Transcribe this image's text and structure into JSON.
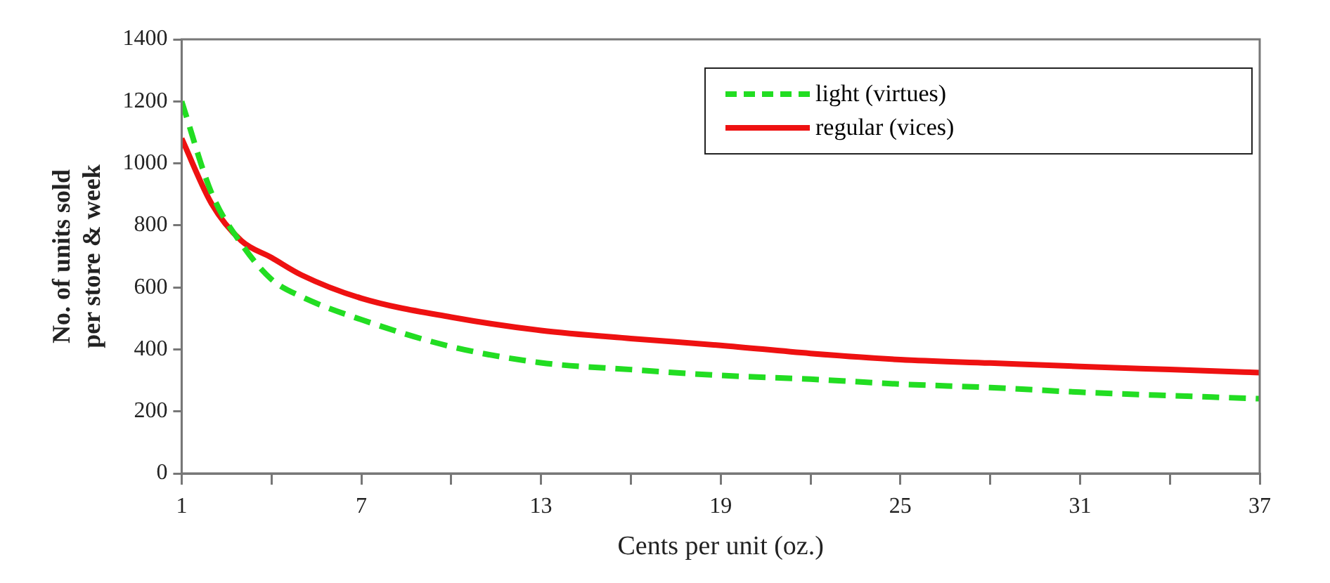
{
  "chart_data": {
    "type": "line",
    "xlabel": "Cents per unit (oz.)",
    "ylabel": "No. of units sold per store & week",
    "x": [
      1,
      2,
      3,
      4,
      5,
      7,
      10,
      13,
      16,
      19,
      22,
      25,
      28,
      31,
      34,
      37
    ],
    "series": [
      {
        "name": "light (virtues)",
        "color": "#22dd22",
        "line_style": "dashed",
        "values": [
          1200,
          904,
          740,
          626,
          570,
          496,
          409,
          357,
          335,
          316,
          304,
          288,
          277,
          262,
          251,
          241
        ]
      },
      {
        "name": "regular (vices)",
        "color": "#ee1111",
        "line_style": "solid",
        "values": [
          1080,
          870,
          750,
          696,
          640,
          565,
          504,
          461,
          435,
          413,
          387,
          367,
          356,
          345,
          335,
          325
        ]
      }
    ],
    "xlim": [
      1,
      37
    ],
    "xticks": [
      1,
      {
        "value": 4,
        "label": null
      },
      7,
      {
        "value": 10,
        "label": null
      },
      13,
      {
        "value": 16,
        "label": null
      },
      19,
      {
        "value": 22,
        "label": null
      },
      25,
      {
        "value": 28,
        "label": null
      },
      31,
      {
        "value": 34,
        "label": null
      },
      37
    ],
    "ylim": [
      0,
      1400
    ],
    "yticks": [
      0,
      200,
      400,
      600,
      800,
      1000,
      1200,
      1400
    ],
    "grid": false,
    "legend": "top right",
    "marker": "none"
  }
}
